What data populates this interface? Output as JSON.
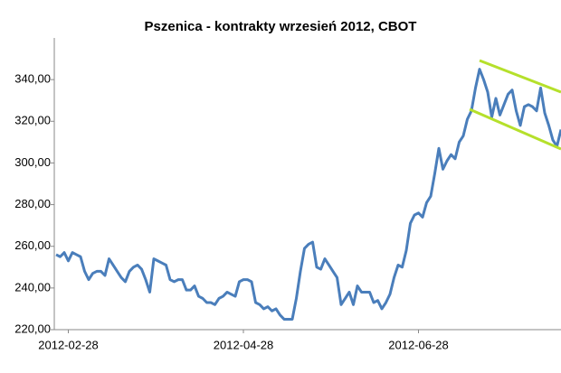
{
  "chart_data": {
    "type": "line",
    "title": "Pszenica - kontrakty wrzesień 2012, CBOT",
    "categories": [
      null,
      null,
      null,
      "2012-02-28",
      null,
      null,
      null,
      null,
      null,
      null,
      null,
      null,
      null,
      null,
      null,
      null,
      null,
      null,
      null,
      null,
      null,
      null,
      null,
      null,
      null,
      null,
      null,
      null,
      null,
      null,
      null,
      null,
      null,
      null,
      null,
      null,
      null,
      null,
      null,
      null,
      null,
      null,
      null,
      null,
      null,
      null,
      "2012-04-28",
      null,
      null,
      null,
      null,
      null,
      null,
      null,
      null,
      null,
      null,
      null,
      null,
      null,
      null,
      null,
      null,
      null,
      null,
      null,
      null,
      null,
      null,
      null,
      null,
      null,
      null,
      null,
      null,
      null,
      null,
      null,
      null,
      null,
      null,
      null,
      null,
      null,
      null,
      null,
      null,
      null,
      null,
      "2012-06-28",
      null,
      null,
      null,
      null,
      null,
      null,
      null,
      null,
      null,
      null,
      null,
      null,
      null,
      null,
      null,
      null,
      null,
      null,
      null,
      null,
      null,
      null,
      null,
      null,
      null,
      null,
      null,
      null,
      null,
      null,
      null,
      null,
      null,
      null,
      null
    ],
    "series": [
      {
        "name": "Pszenica",
        "color": "#4a7ebb",
        "values": [
          256,
          255,
          257,
          253,
          257,
          256,
          255,
          248,
          244,
          247,
          248,
          248,
          246,
          254,
          251,
          248,
          245,
          243,
          248,
          250,
          251,
          249,
          244,
          238,
          254,
          253,
          252,
          251,
          244,
          243,
          244,
          244,
          239,
          239,
          241,
          236,
          235,
          233,
          233,
          232,
          235,
          236,
          238,
          237,
          236,
          243,
          244,
          244,
          243,
          233,
          232,
          230,
          231,
          229,
          230,
          227,
          225,
          225,
          225,
          235,
          248,
          259,
          261,
          262,
          250,
          249,
          254,
          251,
          248,
          245,
          232,
          235,
          238,
          232,
          241,
          238,
          238,
          238,
          233,
          234,
          230,
          233,
          237,
          245,
          251,
          250,
          258,
          271,
          275,
          276,
          274,
          281,
          284,
          295,
          307,
          297,
          301,
          304,
          302,
          310,
          313,
          321,
          325,
          336,
          345,
          340,
          334,
          322,
          331,
          323,
          328,
          333,
          335,
          325,
          318,
          327,
          328,
          327,
          325,
          336,
          324,
          318,
          311,
          308,
          316
        ]
      }
    ],
    "ylim": [
      220,
      360
    ],
    "yticks": [
      {
        "value": 220,
        "label": "220,00"
      },
      {
        "value": 240,
        "label": "240,00"
      },
      {
        "value": 260,
        "label": "260,00"
      },
      {
        "value": 280,
        "label": "280,00"
      },
      {
        "value": 300,
        "label": "300,00"
      },
      {
        "value": 320,
        "label": "320,00"
      },
      {
        "value": 340,
        "label": "340,00"
      }
    ],
    "grid": false
  }
}
